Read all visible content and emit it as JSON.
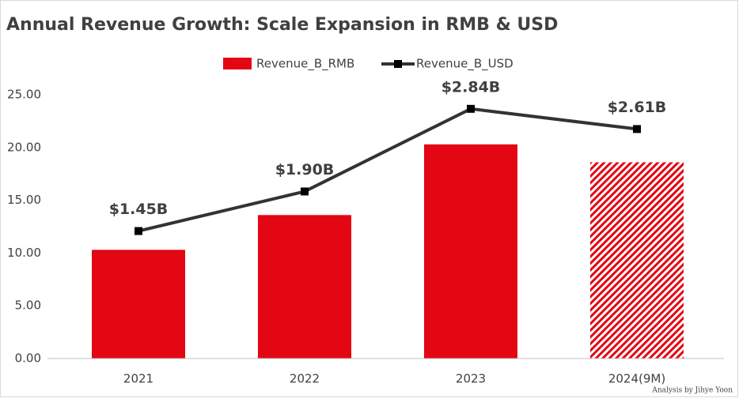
{
  "chart_data": {
    "type": "bar_line",
    "title": "Annual Revenue Growth: Scale Expansion in RMB & USD",
    "footnote": "Analysis by Jihye Yoon",
    "categories": [
      "2021",
      "2022",
      "2023",
      "2024(9M)"
    ],
    "series": [
      {
        "name": "Revenue_B_RMB",
        "type": "bar",
        "color": "#e30613",
        "values": [
          10.3,
          13.6,
          20.3,
          18.6
        ],
        "patterns": [
          "solid",
          "solid",
          "solid",
          "hatch"
        ]
      },
      {
        "name": "Revenue_B_USD",
        "type": "line",
        "axis": "y2",
        "color": "#333333",
        "values": [
          1.45,
          1.9,
          2.84,
          2.61
        ],
        "value_labels": [
          "$1.45B",
          "$1.90B",
          "$2.84B",
          "$2.61B"
        ]
      }
    ],
    "ylim": [
      0,
      25
    ],
    "yticks": [
      {
        "value": 0,
        "label": "0.00"
      },
      {
        "value": 5,
        "label": "5.00"
      },
      {
        "value": 10,
        "label": "10.00"
      },
      {
        "value": 15,
        "label": "15.00"
      },
      {
        "value": 20,
        "label": "20.00"
      },
      {
        "value": 25,
        "label": "25.00"
      }
    ],
    "y2lim": [
      0,
      3
    ],
    "grid": false,
    "legend": "top"
  }
}
